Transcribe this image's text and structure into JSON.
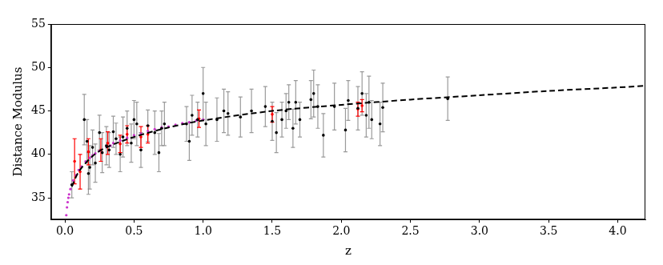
{
  "chart_data": {
    "type": "scatter",
    "x_label": "z",
    "y_label": "Distance Modulus",
    "xlim": [
      -0.1,
      4.2
    ],
    "ylim": [
      32.5,
      55
    ],
    "xticks": [
      {
        "value": 0,
        "label": "0.0"
      },
      {
        "value": 0.5,
        "label": "0.5"
      },
      {
        "value": 1,
        "label": "1.0"
      },
      {
        "value": 1.5,
        "label": "1.5"
      },
      {
        "value": 2,
        "label": "2.0"
      },
      {
        "value": 2.5,
        "label": "2.5"
      },
      {
        "value": 3,
        "label": "3.0"
      },
      {
        "value": 3.5,
        "label": "3.5"
      },
      {
        "value": 4,
        "label": "4.0"
      }
    ],
    "yticks": [
      35,
      40,
      45,
      50,
      55
    ],
    "grid": false,
    "series": [
      {
        "type": "line",
        "color": "#000000",
        "line_style": "dashed",
        "x": [
          0.05,
          0.1,
          0.2,
          0.3,
          0.5,
          0.75,
          1.0,
          1.5,
          2.0,
          2.5,
          3.0,
          3.5,
          4.0,
          4.2
        ],
        "values": [
          36.3,
          38.0,
          39.8,
          40.8,
          42.0,
          43.1,
          43.9,
          45.0,
          45.7,
          46.3,
          46.8,
          47.3,
          47.7,
          47.9
        ]
      },
      {
        "type": "scatter",
        "color": "#000000",
        "marker": "circle",
        "x": [
          0.05,
          0.14,
          0.16,
          0.17,
          0.18,
          0.2,
          0.22,
          0.25,
          0.27,
          0.3,
          0.32,
          0.35,
          0.37,
          0.4,
          0.42,
          0.45,
          0.48,
          0.5,
          0.52,
          0.55,
          0.6,
          0.65,
          0.68,
          0.7,
          0.72,
          0.88,
          0.9,
          0.92,
          0.96,
          1.0,
          1.02,
          1.1,
          1.15,
          1.18,
          1.27,
          1.35,
          1.45,
          1.5,
          1.53,
          1.57,
          1.6,
          1.62,
          1.65,
          1.67,
          1.7,
          1.78,
          1.8,
          1.83,
          1.87,
          1.95,
          2.03,
          2.05,
          2.12,
          2.15,
          2.18,
          2.2,
          2.22,
          2.28,
          2.3,
          2.77
        ],
        "values": [
          36.5,
          44.0,
          41.5,
          37.8,
          38.5,
          40.8,
          39.0,
          42.5,
          40.2,
          41.0,
          40.5,
          42.6,
          41.8,
          40.0,
          42.0,
          43.0,
          41.3,
          44.0,
          43.5,
          40.5,
          43.3,
          42.5,
          40.2,
          43.0,
          43.5,
          43.5,
          41.5,
          44.5,
          44.0,
          47.0,
          43.5,
          44.0,
          45.0,
          44.7,
          44.3,
          45.0,
          45.5,
          43.8,
          42.5,
          44.0,
          45.0,
          46.0,
          43.0,
          46.0,
          44.0,
          46.3,
          47.0,
          45.5,
          42.2,
          45.5,
          42.8,
          46.2,
          45.3,
          47.0,
          44.5,
          46.0,
          44.0,
          43.5,
          45.4,
          46.4
        ],
        "errors": [
          1.5,
          2.9,
          2.5,
          2.4,
          2.5,
          2.0,
          2.2,
          2.0,
          2.3,
          2.2,
          2.0,
          1.8,
          1.8,
          2.0,
          2.3,
          2.0,
          2.2,
          2.2,
          2.5,
          2.0,
          1.8,
          2.5,
          2.2,
          2.0,
          2.5,
          2.0,
          2.2,
          2.3,
          2.0,
          3.0,
          2.5,
          2.5,
          2.5,
          2.5,
          2.3,
          2.5,
          2.3,
          2.2,
          2.3,
          2.0,
          2.0,
          2.0,
          2.2,
          2.5,
          2.0,
          2.2,
          2.7,
          2.5,
          2.5,
          2.7,
          2.5,
          2.3,
          2.5,
          2.5,
          2.5,
          3.0,
          2.2,
          2.5,
          2.8,
          2.5
        ]
      },
      {
        "type": "scatter",
        "color": "#ff0000",
        "marker": "circle",
        "x": [
          0.07,
          0.11,
          0.17,
          0.26,
          0.31,
          0.4,
          0.45,
          0.55,
          0.6,
          0.97,
          1.5,
          2.12,
          2.15
        ],
        "values": [
          39.2,
          38.0,
          40.3,
          40.5,
          41.3,
          41.2,
          42.3,
          42.0,
          42.3,
          44.1,
          44.6,
          45.2,
          45.6
        ],
        "errors": [
          2.6,
          2.0,
          1.5,
          1.3,
          1.3,
          1.0,
          1.0,
          1.2,
          1.0,
          1.0,
          0.9,
          0.8,
          0.7
        ]
      },
      {
        "type": "scatter",
        "color": "#cc33cc",
        "marker": "circle",
        "x": [
          0.01,
          0.015,
          0.02,
          0.025,
          0.03,
          0.04,
          0.05,
          0.06,
          0.08,
          0.1,
          0.12,
          0.15,
          0.18,
          0.2,
          0.22,
          0.25,
          0.3,
          0.33,
          0.35,
          0.4,
          0.45,
          0.5,
          0.55,
          0.6,
          0.65,
          0.7,
          0.75,
          0.8,
          0.85,
          0.9,
          0.95,
          1.0
        ],
        "values": [
          33.0,
          33.9,
          34.5,
          35.0,
          35.4,
          36.0,
          36.5,
          37.0,
          37.6,
          38.2,
          38.6,
          39.2,
          39.6,
          39.9,
          40.1,
          40.4,
          40.9,
          41.0,
          41.3,
          41.6,
          41.9,
          42.2,
          42.4,
          42.7,
          42.9,
          43.1,
          43.2,
          43.4,
          43.6,
          43.7,
          43.9,
          44.0
        ]
      }
    ]
  }
}
